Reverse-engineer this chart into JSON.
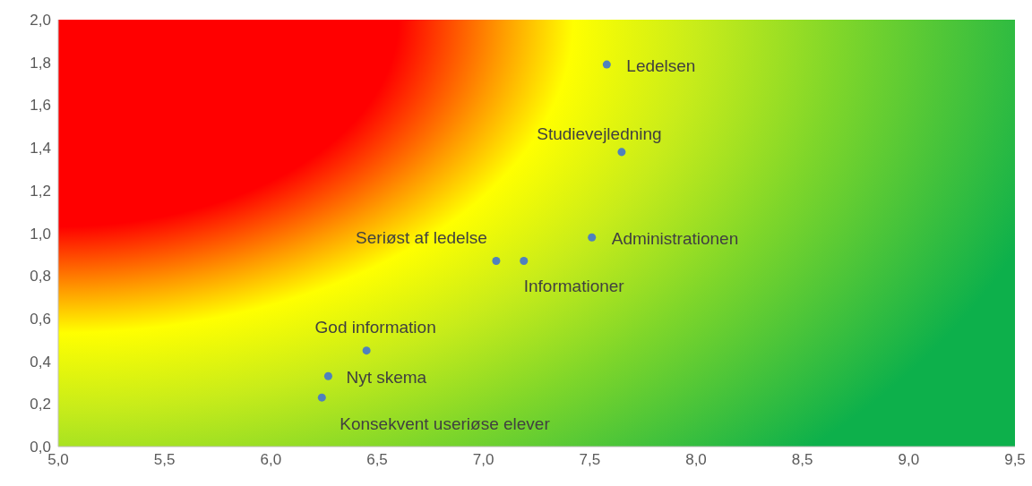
{
  "chart_data": {
    "type": "scatter",
    "marker": "circle",
    "legend": false,
    "grid": false,
    "xlim": [
      5.0,
      9.5
    ],
    "xticks": [
      {
        "value": 5.0,
        "label": "5,0"
      },
      {
        "value": 5.5,
        "label": "5,5"
      },
      {
        "value": 6.0,
        "label": "6,0"
      },
      {
        "value": 6.5,
        "label": "6,5"
      },
      {
        "value": 7.0,
        "label": "7,0"
      },
      {
        "value": 7.5,
        "label": "7,5"
      },
      {
        "value": 8.0,
        "label": "8,0"
      },
      {
        "value": 8.5,
        "label": "8,5"
      },
      {
        "value": 9.0,
        "label": "9,0"
      },
      {
        "value": 9.5,
        "label": "9,5"
      }
    ],
    "ylim": [
      0.0,
      2.0
    ],
    "yticks": [
      {
        "value": 0.0,
        "label": "0,0"
      },
      {
        "value": 0.2,
        "label": "0,2"
      },
      {
        "value": 0.4,
        "label": "0,4"
      },
      {
        "value": 0.6,
        "label": "0,6"
      },
      {
        "value": 0.8,
        "label": "0,8"
      },
      {
        "value": 1.0,
        "label": "1,0"
      },
      {
        "value": 1.2,
        "label": "1,2"
      },
      {
        "value": 1.4,
        "label": "1,4"
      },
      {
        "value": 1.6,
        "label": "1,6"
      },
      {
        "value": 1.8,
        "label": "1,8"
      },
      {
        "value": 2.0,
        "label": "2,0"
      }
    ],
    "series": [
      {
        "name": "Ledelsen",
        "color": "#4f81bd",
        "x": [
          7.58
        ],
        "values": [
          1.79
        ]
      },
      {
        "name": "Studievejledning",
        "color": "#4f81bd",
        "x": [
          7.65
        ],
        "values": [
          1.38
        ]
      },
      {
        "name": "Administrationen",
        "color": "#4f81bd",
        "x": [
          7.51
        ],
        "values": [
          0.98
        ]
      },
      {
        "name": "Seriøst af ledelse",
        "color": "#4f81bd",
        "x": [
          7.06
        ],
        "values": [
          0.87
        ]
      },
      {
        "name": "Informationer",
        "color": "#4f81bd",
        "x": [
          7.19
        ],
        "values": [
          0.87
        ]
      },
      {
        "name": "God information",
        "color": "#4f81bd",
        "x": [
          6.45
        ],
        "values": [
          0.45
        ]
      },
      {
        "name": "Nyt skema",
        "color": "#4f81bd",
        "x": [
          6.27
        ],
        "values": [
          0.33
        ]
      },
      {
        "name": "Konsekvent useriøse elever",
        "color": "#4f81bd",
        "x": [
          6.24
        ],
        "values": [
          0.23
        ]
      }
    ]
  }
}
